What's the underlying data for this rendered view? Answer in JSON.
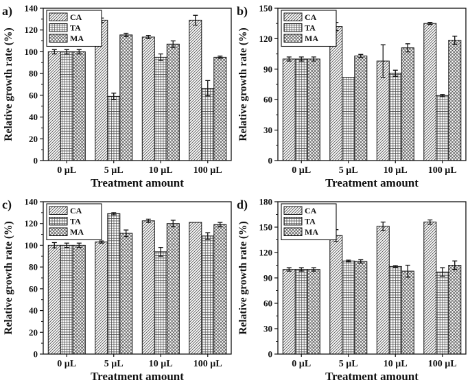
{
  "figure": {
    "background": "#ffffff",
    "axis_color": "#111111",
    "hatch_color": "#4a4a4a",
    "bar_fill": "#fcfcfc",
    "series_names": [
      "CA",
      "TA",
      "MA"
    ],
    "series_patterns": [
      "diagonal-hatch",
      "grid",
      "crosshatch"
    ],
    "xlabel": "Treatment amount",
    "ylabel": "Relative growth rate (%)",
    "categories": [
      "0 µL",
      "5 µL",
      "10 µL",
      "100 µL"
    ]
  },
  "chart_data": [
    {
      "type": "bar",
      "panel_label": "a)",
      "xlabel": "Treatment amount",
      "ylabel": "Relative growth rate (%)",
      "categories": [
        "0 µL",
        "5 µL",
        "10 µL",
        "100 µL"
      ],
      "ylim": [
        0,
        140
      ],
      "yticks": [
        0,
        20,
        40,
        60,
        80,
        100,
        120,
        140
      ],
      "legend_position": "upper-left",
      "grid": false,
      "series": [
        {
          "name": "CA",
          "pattern": "diagonal-hatch",
          "values": [
            100,
            129,
            113.5,
            129
          ],
          "errors": [
            2,
            2,
            1.5,
            4.5
          ]
        },
        {
          "name": "TA",
          "pattern": "grid",
          "values": [
            100,
            59,
            95,
            66.5
          ],
          "errors": [
            2,
            3,
            3,
            7
          ]
        },
        {
          "name": "MA",
          "pattern": "crosshatch",
          "values": [
            100,
            115.5,
            107,
            95
          ],
          "errors": [
            2,
            1.5,
            3,
            1
          ]
        }
      ]
    },
    {
      "type": "bar",
      "panel_label": "b)",
      "xlabel": "Treatment amount",
      "ylabel": "Relative growth rate (%)",
      "categories": [
        "0 µL",
        "5 µL",
        "10 µL",
        "100 µL"
      ],
      "ylim": [
        0,
        150
      ],
      "yticks": [
        0,
        30,
        60,
        90,
        120,
        150
      ],
      "legend_position": "upper-left",
      "grid": false,
      "series": [
        {
          "name": "CA",
          "pattern": "diagonal-hatch",
          "values": [
            100,
            132,
            98,
            135
          ],
          "errors": [
            2,
            4,
            16,
            1
          ]
        },
        {
          "name": "TA",
          "pattern": "grid",
          "values": [
            100,
            82,
            86,
            64
          ],
          "errors": [
            2,
            0,
            3,
            1
          ]
        },
        {
          "name": "MA",
          "pattern": "crosshatch",
          "values": [
            100,
            103,
            111,
            118.5
          ],
          "errors": [
            2,
            1.5,
            4,
            4
          ]
        }
      ]
    },
    {
      "type": "bar",
      "panel_label": "c)",
      "xlabel": "Treatment amount",
      "ylabel": "Relative growth rate (%)",
      "categories": [
        "0 µL",
        "5 µL",
        "10 µL",
        "100 µL"
      ],
      "ylim": [
        0,
        140
      ],
      "yticks": [
        0,
        20,
        40,
        60,
        80,
        100,
        120,
        140
      ],
      "legend_position": "upper-left",
      "grid": false,
      "series": [
        {
          "name": "CA",
          "pattern": "diagonal-hatch",
          "values": [
            100,
            103,
            122.5,
            121
          ],
          "errors": [
            2.5,
            1,
            1.5,
            0
          ]
        },
        {
          "name": "TA",
          "pattern": "grid",
          "values": [
            100,
            129,
            94,
            108.5
          ],
          "errors": [
            2,
            1,
            4,
            3
          ]
        },
        {
          "name": "MA",
          "pattern": "crosshatch",
          "values": [
            100,
            111,
            120,
            119
          ],
          "errors": [
            2,
            3,
            3,
            2
          ]
        }
      ]
    },
    {
      "type": "bar",
      "panel_label": "d)",
      "xlabel": "Treatment amount",
      "ylabel": "Relative growth rate (%)",
      "categories": [
        "0 µL",
        "5 µL",
        "10 µL",
        "100 µL"
      ],
      "ylim": [
        0,
        180
      ],
      "yticks": [
        0,
        30,
        60,
        90,
        120,
        150,
        180
      ],
      "legend_position": "upper-left",
      "grid": false,
      "series": [
        {
          "name": "CA",
          "pattern": "diagonal-hatch",
          "values": [
            100,
            140,
            151,
            156
          ],
          "errors": [
            2,
            7,
            5,
            2.5
          ]
        },
        {
          "name": "TA",
          "pattern": "grid",
          "values": [
            100,
            110,
            103.5,
            97
          ],
          "errors": [
            2,
            1,
            1,
            5
          ]
        },
        {
          "name": "MA",
          "pattern": "crosshatch",
          "values": [
            100,
            109.5,
            98,
            105
          ],
          "errors": [
            2,
            2,
            7,
            5
          ]
        }
      ]
    }
  ]
}
